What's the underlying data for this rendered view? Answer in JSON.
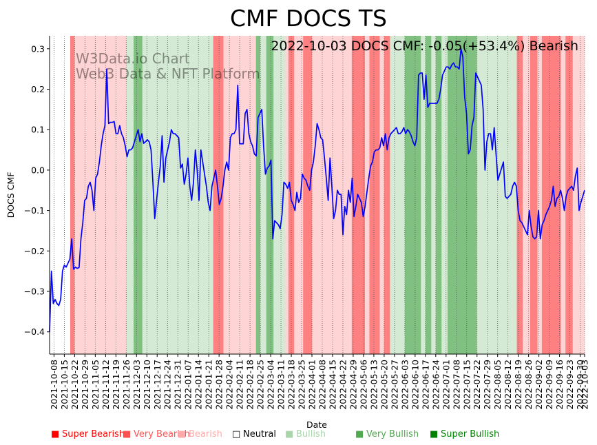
{
  "chart_data": {
    "type": "line",
    "title": "CMF DOCS TS",
    "annotation": "2022-10-03 DOCS CMF: -0.05(+53.4%) Bearish",
    "watermark": [
      "W3Data.io Chart",
      "Web3 Data & NFT Platform"
    ],
    "xlabel": "Date",
    "ylabel": "DOCS CMF",
    "ylim": [
      -0.455,
      0.332
    ],
    "yticks": [
      -0.4,
      -0.3,
      -0.2,
      -0.1,
      0.0,
      0.1,
      0.2,
      0.3
    ],
    "ytick_labels": [
      "−0.4",
      "−0.3",
      "−0.2",
      "−0.1",
      "0.0",
      "0.1",
      "0.2",
      "0.3"
    ],
    "start_date": "2021-10-05",
    "end_date": "2022-10-03",
    "xticks": [
      "2021-10-08",
      "2021-10-15",
      "2021-10-22",
      "2021-10-29",
      "2021-11-05",
      "2021-11-12",
      "2021-11-19",
      "2021-11-26",
      "2021-12-03",
      "2021-12-10",
      "2021-12-17",
      "2021-12-24",
      "2021-12-31",
      "2022-01-07",
      "2022-01-14",
      "2022-01-21",
      "2022-01-28",
      "2022-02-04",
      "2022-02-11",
      "2022-02-18",
      "2022-02-25",
      "2022-03-04",
      "2022-03-11",
      "2022-03-18",
      "2022-03-25",
      "2022-04-01",
      "2022-04-08",
      "2022-04-15",
      "2022-04-22",
      "2022-04-29",
      "2022-05-06",
      "2022-05-13",
      "2022-05-20",
      "2022-05-27",
      "2022-06-03",
      "2022-06-10",
      "2022-06-17",
      "2022-06-24",
      "2022-07-01",
      "2022-07-08",
      "2022-07-15",
      "2022-07-22",
      "2022-07-29",
      "2022-08-05",
      "2022-08-12",
      "2022-08-19",
      "2022-08-26",
      "2022-09-02",
      "2022-09-09",
      "2022-09-16",
      "2022-09-23",
      "2022-09-30",
      "2022-10-03"
    ],
    "series": [
      {
        "name": "DOCS CMF",
        "color": "#0000ff",
        "values": [
          -0.4,
          -0.25,
          -0.33,
          -0.32,
          -0.33,
          -0.335,
          -0.32,
          -0.25,
          -0.235,
          -0.24,
          -0.23,
          -0.22,
          -0.17,
          -0.245,
          -0.24,
          -0.243,
          -0.241,
          -0.17,
          -0.13,
          -0.075,
          -0.07,
          -0.04,
          -0.03,
          -0.05,
          -0.1,
          -0.02,
          -0.01,
          0.02,
          0.06,
          0.09,
          0.11,
          0.25,
          0.115,
          0.118,
          0.118,
          0.12,
          0.09,
          0.09,
          0.11,
          0.09,
          0.08,
          0.06,
          0.033,
          0.05,
          0.05,
          0.055,
          0.07,
          0.085,
          0.1,
          0.07,
          0.09,
          0.066,
          0.07,
          0.075,
          0.07,
          0.05,
          -0.03,
          -0.12,
          -0.075,
          -0.03,
          0.01,
          0.085,
          -0.03,
          0.03,
          0.05,
          0.07,
          0.1,
          0.09,
          0.09,
          0.085,
          0.08,
          0.005,
          0.015,
          -0.035,
          -0.01,
          0.03,
          -0.04,
          -0.075,
          -0.03,
          0.05,
          0.0,
          -0.075,
          0.05,
          0.02,
          -0.01,
          -0.04,
          -0.08,
          -0.1,
          -0.04,
          -0.02,
          0.0,
          -0.04,
          -0.085,
          -0.07,
          -0.04,
          0.0,
          0.02,
          0.0,
          0.08,
          0.09,
          0.09,
          0.1,
          0.21,
          0.065,
          0.065,
          0.065,
          0.14,
          0.15,
          0.09,
          0.07,
          0.06,
          0.04,
          0.035,
          0.13,
          0.14,
          0.15,
          0.06,
          -0.01,
          0.005,
          0.01,
          0.025,
          -0.17,
          -0.125,
          -0.13,
          -0.135,
          -0.145,
          -0.11,
          -0.03,
          -0.035,
          -0.045,
          -0.03,
          -0.075,
          -0.085,
          -0.1,
          -0.055,
          -0.08,
          -0.07,
          -0.01,
          -0.02,
          -0.025,
          -0.04,
          -0.05,
          0.0,
          0.02,
          0.06,
          0.115,
          0.1,
          0.08,
          0.075,
          0.03,
          -0.02,
          -0.075,
          0.03,
          -0.04,
          -0.12,
          -0.1,
          -0.05,
          -0.06,
          -0.06,
          -0.16,
          -0.09,
          -0.11,
          -0.05,
          -0.08,
          -0.02,
          -0.115,
          -0.09,
          -0.06,
          -0.07,
          -0.08,
          -0.115,
          -0.09,
          -0.055,
          -0.02,
          0.01,
          0.02,
          0.045,
          0.05,
          0.05,
          0.055,
          0.08,
          0.06,
          0.09,
          0.05,
          0.08,
          0.09,
          0.095,
          0.1,
          0.105,
          0.09,
          0.09,
          0.095,
          0.105,
          0.09,
          0.1,
          0.095,
          0.085,
          0.07,
          0.06,
          0.08,
          0.235,
          0.24,
          0.24,
          0.175,
          0.235,
          0.155,
          0.165,
          0.165,
          0.165,
          0.165,
          0.165,
          0.175,
          0.2,
          0.235,
          0.245,
          0.255,
          0.255,
          0.25,
          0.26,
          0.265,
          0.255,
          0.255,
          0.25,
          0.3,
          0.28,
          0.18,
          0.14,
          0.04,
          0.05,
          0.11,
          0.13,
          0.24,
          0.23,
          0.22,
          0.21,
          0.15,
          0.0,
          0.07,
          0.09,
          0.09,
          0.05,
          0.105,
          0.04,
          -0.025,
          -0.01,
          0.005,
          0.02,
          -0.065,
          -0.07,
          -0.065,
          -0.06,
          -0.04,
          -0.03,
          -0.04,
          -0.1,
          -0.125,
          -0.13,
          -0.14,
          -0.15,
          -0.16,
          -0.1,
          -0.14,
          -0.165,
          -0.17,
          -0.165,
          -0.1,
          -0.17,
          -0.135,
          -0.125,
          -0.11,
          -0.1,
          -0.09,
          -0.075,
          -0.04,
          -0.09,
          -0.07,
          -0.065,
          -0.05,
          -0.07,
          -0.1,
          -0.065,
          -0.05,
          -0.045,
          -0.04,
          -0.05,
          -0.015,
          0.005,
          -0.1,
          -0.08,
          -0.065,
          -0.05
        ]
      }
    ],
    "bands": [
      {
        "start": "2021-10-19",
        "end": "2021-10-22",
        "cat": "very_bearish"
      },
      {
        "start": "2021-10-22",
        "end": "2021-11-26",
        "cat": "bearish"
      },
      {
        "start": "2021-11-26",
        "end": "2021-12-01",
        "cat": "bullish"
      },
      {
        "start": "2021-12-01",
        "end": "2021-12-07",
        "cat": "very_bullish"
      },
      {
        "start": "2021-12-07",
        "end": "2022-01-24",
        "cat": "bullish"
      },
      {
        "start": "2022-01-24",
        "end": "2022-01-31",
        "cat": "very_bearish"
      },
      {
        "start": "2022-01-31",
        "end": "2022-02-22",
        "cat": "bearish"
      },
      {
        "start": "2022-02-22",
        "end": "2022-02-25",
        "cat": "very_bullish"
      },
      {
        "start": "2022-02-25",
        "end": "2022-03-01",
        "cat": "bullish"
      },
      {
        "start": "2022-03-01",
        "end": "2022-03-06",
        "cat": "very_bullish"
      },
      {
        "start": "2022-03-06",
        "end": "2022-03-14",
        "cat": "bullish"
      },
      {
        "start": "2022-03-14",
        "end": "2022-03-16",
        "cat": "bearish"
      },
      {
        "start": "2022-03-16",
        "end": "2022-03-20",
        "cat": "very_bearish"
      },
      {
        "start": "2022-03-20",
        "end": "2022-03-26",
        "cat": "bearish"
      },
      {
        "start": "2022-03-26",
        "end": "2022-04-01",
        "cat": "very_bearish"
      },
      {
        "start": "2022-04-01",
        "end": "2022-04-28",
        "cat": "bearish"
      },
      {
        "start": "2022-04-28",
        "end": "2022-05-07",
        "cat": "very_bearish"
      },
      {
        "start": "2022-05-07",
        "end": "2022-05-10",
        "cat": "bearish"
      },
      {
        "start": "2022-05-10",
        "end": "2022-05-17",
        "cat": "very_bearish"
      },
      {
        "start": "2022-05-17",
        "end": "2022-05-20",
        "cat": "bearish"
      },
      {
        "start": "2022-05-20",
        "end": "2022-05-24",
        "cat": "very_bearish"
      },
      {
        "start": "2022-05-24",
        "end": "2022-06-03",
        "cat": "bullish"
      },
      {
        "start": "2022-06-03",
        "end": "2022-06-14",
        "cat": "very_bullish"
      },
      {
        "start": "2022-06-14",
        "end": "2022-06-17",
        "cat": "bullish"
      },
      {
        "start": "2022-06-17",
        "end": "2022-06-21",
        "cat": "very_bullish"
      },
      {
        "start": "2022-06-21",
        "end": "2022-06-24",
        "cat": "bullish"
      },
      {
        "start": "2022-06-24",
        "end": "2022-06-28",
        "cat": "very_bullish"
      },
      {
        "start": "2022-06-28",
        "end": "2022-07-02",
        "cat": "bullish"
      },
      {
        "start": "2022-07-02",
        "end": "2022-07-22",
        "cat": "very_bullish"
      },
      {
        "start": "2022-07-22",
        "end": "2022-08-18",
        "cat": "bullish"
      },
      {
        "start": "2022-08-18",
        "end": "2022-08-22",
        "cat": "very_bearish"
      },
      {
        "start": "2022-08-22",
        "end": "2022-08-27",
        "cat": "bearish"
      },
      {
        "start": "2022-08-27",
        "end": "2022-09-01",
        "cat": "very_bearish"
      },
      {
        "start": "2022-09-01",
        "end": "2022-09-04",
        "cat": "bearish"
      },
      {
        "start": "2022-09-04",
        "end": "2022-09-17",
        "cat": "very_bearish"
      },
      {
        "start": "2022-09-17",
        "end": "2022-09-20",
        "cat": "bearish"
      },
      {
        "start": "2022-09-20",
        "end": "2022-09-25",
        "cat": "very_bearish"
      },
      {
        "start": "2022-09-25",
        "end": "2022-10-03",
        "cat": "bearish"
      }
    ],
    "band_colors": {
      "very_bearish": "#ff8080",
      "bearish": "#ffd4d4",
      "bullish": "#d4ead4",
      "very_bullish": "#80c080"
    },
    "legend": [
      {
        "label": "Super Bearish",
        "color": "#ff0000",
        "text_color": "#ff0000",
        "swatch": "■"
      },
      {
        "label": "Very Bearish",
        "color": "#ff5050",
        "text_color": "#ff5050",
        "swatch": "■"
      },
      {
        "label": "Bearish",
        "color": "#ffaaaa",
        "text_color": "#ffaaaa",
        "swatch": "■"
      },
      {
        "label": "Neutral",
        "color": "#000000",
        "text_color": "#000000",
        "swatch": "□"
      },
      {
        "label": "Bullish",
        "color": "#aad4aa",
        "text_color": "#aad4aa",
        "swatch": "■"
      },
      {
        "label": "Very Bullish",
        "color": "#50a850",
        "text_color": "#50a850",
        "swatch": "■"
      },
      {
        "label": "Super Bullish",
        "color": "#008000",
        "text_color": "#008000",
        "swatch": "■"
      }
    ]
  }
}
